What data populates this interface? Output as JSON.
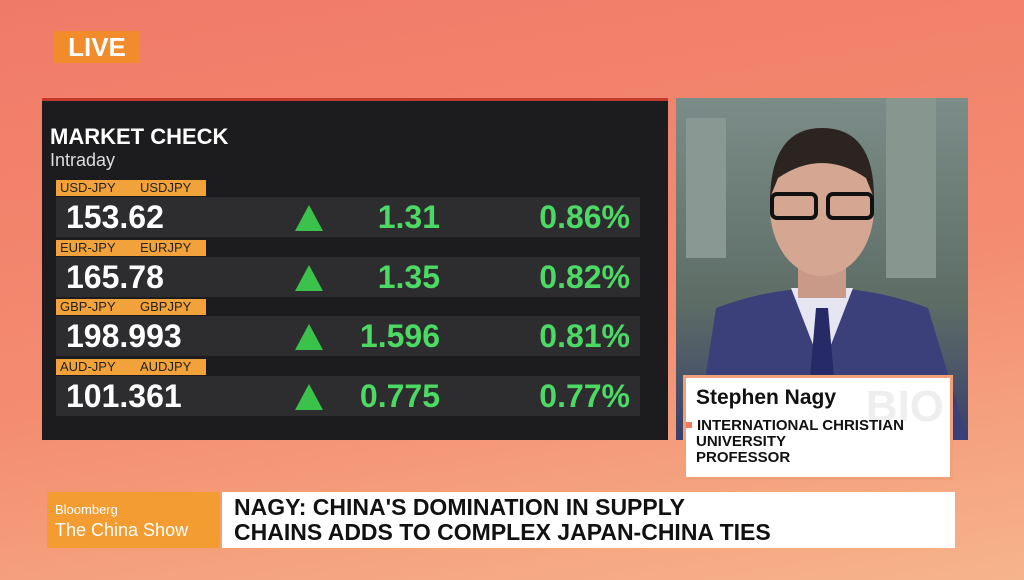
{
  "live_badge": "LIVE",
  "market_check": {
    "title": "MARKET CHECK",
    "subtitle": "Intraday",
    "rows": [
      {
        "pair": "USD-JPY",
        "ticker": "USDJPY",
        "price": "153.62",
        "change": "1.31",
        "percent": "0.86%"
      },
      {
        "pair": "EUR-JPY",
        "ticker": "EURJPY",
        "price": "165.78",
        "change": "1.35",
        "percent": "0.82%"
      },
      {
        "pair": "GBP-JPY",
        "ticker": "GBPJPY",
        "price": "198.993",
        "change": "1.596",
        "percent": "0.81%"
      },
      {
        "pair": "AUD-JPY",
        "ticker": "AUDJPY",
        "price": "101.361",
        "change": "0.775",
        "percent": "0.77%"
      }
    ]
  },
  "guest": {
    "name": "Stephen Nagy",
    "affiliation": [
      "INTERNATIONAL CHRISTIAN",
      "UNIVERSITY",
      "PROFESSOR"
    ],
    "watermark": "BIO"
  },
  "show": {
    "brand": "Bloomberg",
    "name": "The China Show"
  },
  "headline": [
    "NAGY: CHINA'S DOMINATION IN SUPPLY",
    "CHAINS ADDS TO COMPLEX JAPAN-CHINA TIES"
  ]
}
